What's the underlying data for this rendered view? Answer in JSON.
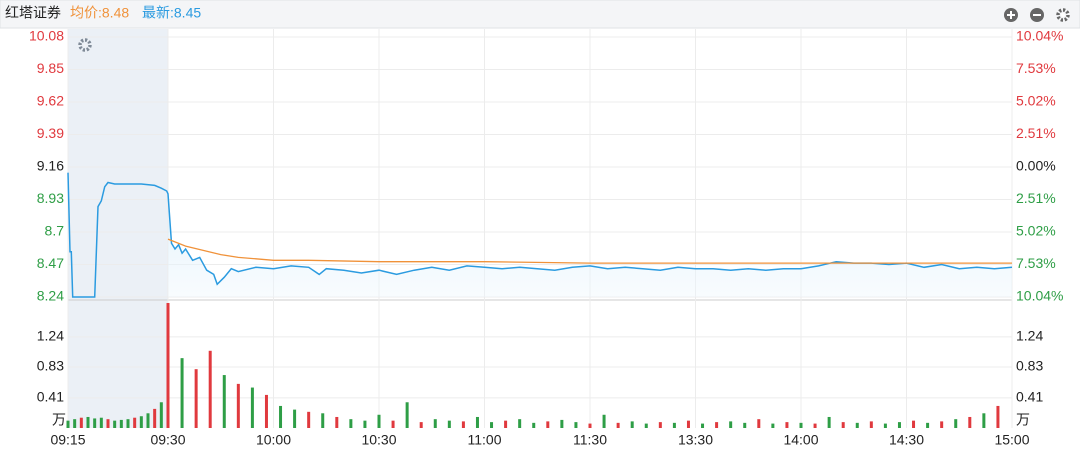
{
  "header": {
    "title": "红塔证券",
    "avg": "均价:8.48",
    "last": "最新:8.45",
    "avg_color": "#f0923a",
    "last_color": "#2b9be0"
  },
  "chart_data": [
    {
      "type": "line",
      "ylim": [
        8.24,
        10.08
      ],
      "yticks": [
        8.24,
        8.47,
        8.7,
        8.93,
        9.16,
        9.39,
        9.62,
        9.85,
        10.08
      ],
      "y2lim": [
        -10.04,
        10.04
      ],
      "y2ticks": [
        {
          "value": -10.04,
          "label": "10.04%"
        },
        {
          "value": -7.53,
          "label": "7.53%"
        },
        {
          "value": -5.02,
          "label": "5.02%"
        },
        {
          "value": -2.51,
          "label": "2.51%"
        },
        {
          "value": 0,
          "label": "0.00%"
        },
        {
          "value": 2.51,
          "label": "2.51%"
        },
        {
          "value": 5.02,
          "label": "5.02%"
        },
        {
          "value": 7.53,
          "label": "7.53%"
        },
        {
          "value": 10.04,
          "label": "10.04%"
        }
      ],
      "xlim": [
        -15,
        240
      ],
      "grid": true,
      "up_color": "#e0393e",
      "down_color": "#2e9e46",
      "series": [
        {
          "color": "#2b9be0",
          "x": [
            -15,
            -14.7,
            -14.5,
            -14.3,
            -11,
            -10.5,
            -10,
            -9.5,
            -9,
            -8,
            -6,
            -4,
            -2,
            -1,
            -0.2,
            0,
            1,
            2,
            3,
            4,
            5,
            7,
            9,
            11,
            13,
            14,
            16,
            18,
            20,
            25,
            30,
            35,
            40,
            43,
            45,
            50,
            55,
            60,
            65,
            70,
            75,
            80,
            85,
            90,
            95,
            100,
            105,
            110,
            115,
            120,
            125,
            130,
            135,
            140,
            145,
            150,
            155,
            160,
            165,
            170,
            175,
            180,
            185,
            190,
            195,
            200,
            205,
            210,
            215,
            220,
            225,
            230,
            235,
            240
          ],
          "values": [
            9.12,
            8.56,
            8.56,
            8.24,
            8.24,
            8.88,
            8.92,
            9.02,
            9.05,
            9.04,
            9.04,
            9.04,
            9.03,
            9.01,
            8.99,
            8.97,
            8.62,
            8.58,
            8.61,
            8.55,
            8.58,
            8.5,
            8.52,
            8.43,
            8.4,
            8.33,
            8.38,
            8.44,
            8.42,
            8.45,
            8.44,
            8.46,
            8.45,
            8.4,
            8.44,
            8.43,
            8.41,
            8.43,
            8.4,
            8.43,
            8.45,
            8.43,
            8.46,
            8.45,
            8.44,
            8.45,
            8.44,
            8.43,
            8.45,
            8.46,
            8.44,
            8.45,
            8.44,
            8.43,
            8.45,
            8.44,
            8.44,
            8.43,
            8.44,
            8.43,
            8.44,
            8.44,
            8.46,
            8.49,
            8.48,
            8.48,
            8.47,
            8.48,
            8.45,
            8.47,
            8.44,
            8.45,
            8.44,
            8.45
          ]
        },
        {
          "color": "#f0923a",
          "x": [
            0,
            5,
            10,
            15,
            20,
            25,
            30,
            40,
            60,
            90,
            120,
            180,
            240
          ],
          "values": [
            8.65,
            8.6,
            8.57,
            8.54,
            8.52,
            8.51,
            8.5,
            8.5,
            8.49,
            8.49,
            8.48,
            8.48,
            8.48
          ]
        }
      ]
    },
    {
      "type": "bar",
      "unit": "万",
      "ylim": [
        0,
        1.7
      ],
      "yticks": [
        0.41,
        0.83,
        1.24
      ],
      "xlim": [
        -15,
        240
      ],
      "xticks": [
        {
          "value": -15,
          "label": "09:15"
        },
        {
          "value": 0,
          "label": "09:30"
        },
        {
          "value": 30,
          "label": "10:00"
        },
        {
          "value": 60,
          "label": "10:30"
        },
        {
          "value": 90,
          "label": "11:00"
        },
        {
          "value": 120,
          "label": "11:30"
        },
        {
          "value": 150,
          "label": "13:30"
        },
        {
          "value": 180,
          "label": "14:00"
        },
        {
          "value": 210,
          "label": "14:30"
        },
        {
          "value": 240,
          "label": "15:00"
        }
      ],
      "up_color": "#e0393e",
      "down_color": "#2e9e46",
      "x": [
        -15,
        -14,
        -13,
        -12,
        -11,
        -10,
        -9,
        -8,
        -7,
        -6,
        -5,
        -4,
        -3,
        -2,
        -1,
        0,
        4,
        8,
        12,
        16,
        20,
        24,
        28,
        32,
        36,
        40,
        44,
        48,
        52,
        56,
        60,
        64,
        68,
        72,
        76,
        80,
        84,
        88,
        92,
        96,
        100,
        104,
        108,
        112,
        116,
        120,
        124,
        128,
        132,
        136,
        140,
        144,
        148,
        152,
        156,
        160,
        164,
        168,
        172,
        176,
        180,
        184,
        188,
        192,
        196,
        200,
        204,
        208,
        212,
        216,
        220,
        224,
        228,
        232,
        236
      ],
      "values": [
        0.1,
        0.12,
        0.14,
        0.15,
        0.13,
        0.14,
        0.12,
        0.1,
        0.11,
        0.12,
        0.14,
        0.16,
        0.2,
        0.26,
        0.35,
        1.7,
        0.95,
        0.8,
        1.05,
        0.72,
        0.6,
        0.55,
        0.45,
        0.3,
        0.25,
        0.22,
        0.2,
        0.15,
        0.12,
        0.1,
        0.18,
        0.1,
        0.35,
        0.08,
        0.12,
        0.1,
        0.09,
        0.15,
        0.08,
        0.1,
        0.12,
        0.07,
        0.09,
        0.11,
        0.08,
        0.06,
        0.18,
        0.07,
        0.09,
        0.06,
        0.08,
        0.07,
        0.1,
        0.06,
        0.08,
        0.09,
        0.07,
        0.12,
        0.06,
        0.08,
        0.07,
        0.06,
        0.15,
        0.08,
        0.07,
        0.09,
        0.06,
        0.08,
        0.1,
        0.07,
        0.09,
        0.12,
        0.15,
        0.2,
        0.3
      ],
      "up": [
        false,
        false,
        true,
        false,
        false,
        false,
        true,
        false,
        false,
        false,
        true,
        false,
        false,
        true,
        false,
        true,
        false,
        true,
        true,
        false,
        true,
        false,
        true,
        false,
        false,
        true,
        false,
        true,
        false,
        false,
        false,
        true,
        false,
        true,
        false,
        false,
        true,
        false,
        false,
        true,
        false,
        false,
        true,
        false,
        false,
        true,
        false,
        true,
        false,
        false,
        true,
        false,
        true,
        false,
        true,
        false,
        false,
        true,
        false,
        true,
        false,
        true,
        false,
        true,
        false,
        true,
        false,
        false,
        true,
        false,
        true,
        false,
        true,
        false,
        true
      ]
    }
  ]
}
